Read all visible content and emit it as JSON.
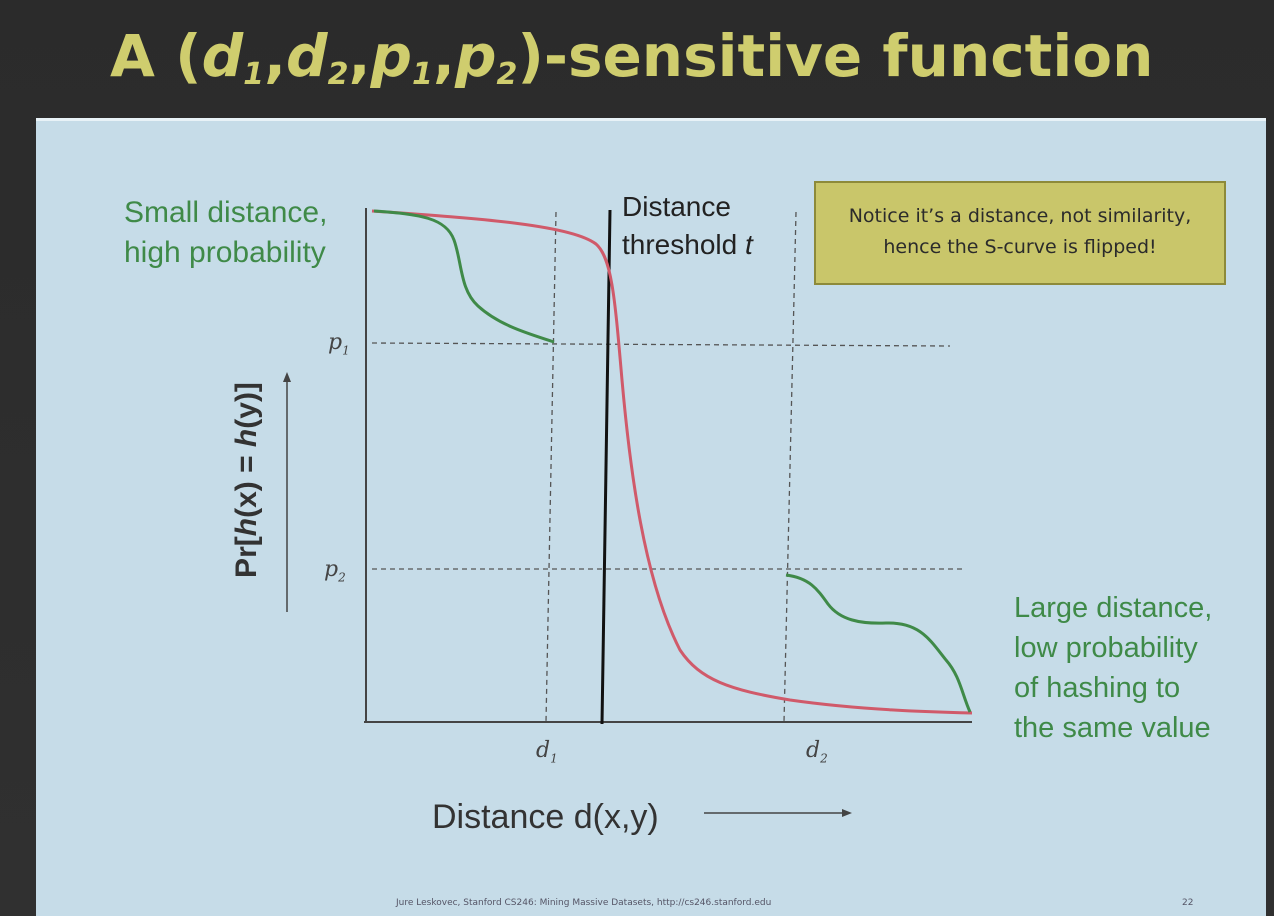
{
  "title": {
    "prefix": "A (",
    "d": "d",
    "p": "p",
    "sub1": "1",
    "sub2": "2",
    "comma": ",",
    "suffix": ")-sensitive function"
  },
  "annotations": {
    "small_distance_line1": "Small distance,",
    "small_distance_line2": "high probability",
    "large_distance_line1": "Large distance,",
    "large_distance_line2": "low probability",
    "large_distance_line3": "of hashing to",
    "large_distance_line4": "the same value"
  },
  "threshold": {
    "line1": "Distance",
    "line2_prefix": "threshold",
    "line2_var": "t"
  },
  "note": {
    "line1": "Notice it’s a distance, not similarity,",
    "line2": "hence the S-curve is flipped!"
  },
  "axes": {
    "ylabel_prefix": "Pr[",
    "ylabel_h1": "h",
    "ylabel_mid": "(x) = ",
    "ylabel_h2": "h",
    "ylabel_suffix": "(y)]",
    "xlabel": "Distance d(x,y)"
  },
  "ticks": {
    "p1": "p",
    "p1_sub": "1",
    "p2": "p",
    "p2_sub": "2",
    "d1": "d",
    "d1_sub": "1",
    "d2": "d",
    "d2_sub": "2"
  },
  "footer": "Jure Leskovec, Stanford CS246: Mining Massive Datasets, http://cs246.stanford.edu",
  "page_number": "22",
  "colors": {
    "title": "#cfcd6e",
    "slide_bg": "#c6dce8",
    "green_curve": "#3f8a48",
    "red_curve": "#d05a6a",
    "note_bg": "#c9c66a"
  }
}
